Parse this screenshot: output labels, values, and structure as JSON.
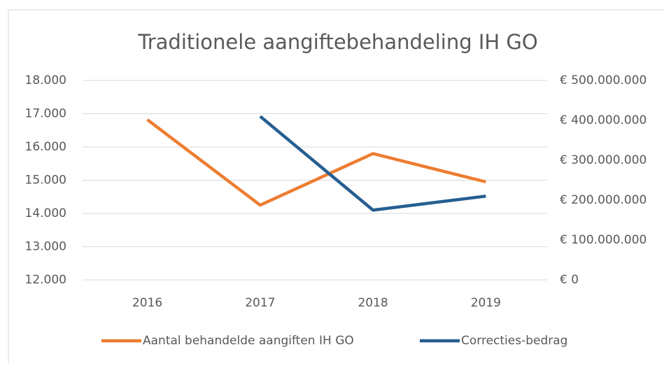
{
  "chart_data": {
    "type": "line",
    "title": "Traditionele aangiftebehandeling IH GO",
    "categories": [
      "2016",
      "2017",
      "2018",
      "2019"
    ],
    "series": [
      {
        "name": "Aantal behandelde aangiften IH GO",
        "color": "#ed7d31",
        "values": [
          16820,
          14250,
          15800,
          14950
        ]
      },
      {
        "name": "Correcties-bedrag",
        "color": "#255e91",
        "axis": "y2",
        "values": [
          null,
          410000000,
          175000000,
          210000000
        ]
      }
    ],
    "ylim": [
      12000,
      18000
    ],
    "yticks": [
      {
        "value": 12000,
        "label": "12.000"
      },
      {
        "value": 13000,
        "label": "13.000"
      },
      {
        "value": 14000,
        "label": "14.000"
      },
      {
        "value": 15000,
        "label": "15.000"
      },
      {
        "value": 16000,
        "label": "16.000"
      },
      {
        "value": 17000,
        "label": "17.000"
      },
      {
        "value": 18000,
        "label": "18.000"
      }
    ],
    "y2lim": [
      0,
      500000000
    ],
    "y2ticks": [
      {
        "value": 0,
        "label": "€ 0"
      },
      {
        "value": 100000000,
        "label": "€ 100.000.000"
      },
      {
        "value": 200000000,
        "label": "€ 200.000.000"
      },
      {
        "value": 300000000,
        "label": "€ 300.000.000"
      },
      {
        "value": 400000000,
        "label": "€ 400.000.000"
      },
      {
        "value": 500000000,
        "label": "€ 500.000.000"
      }
    ],
    "grid": true,
    "legend": "bottom"
  }
}
